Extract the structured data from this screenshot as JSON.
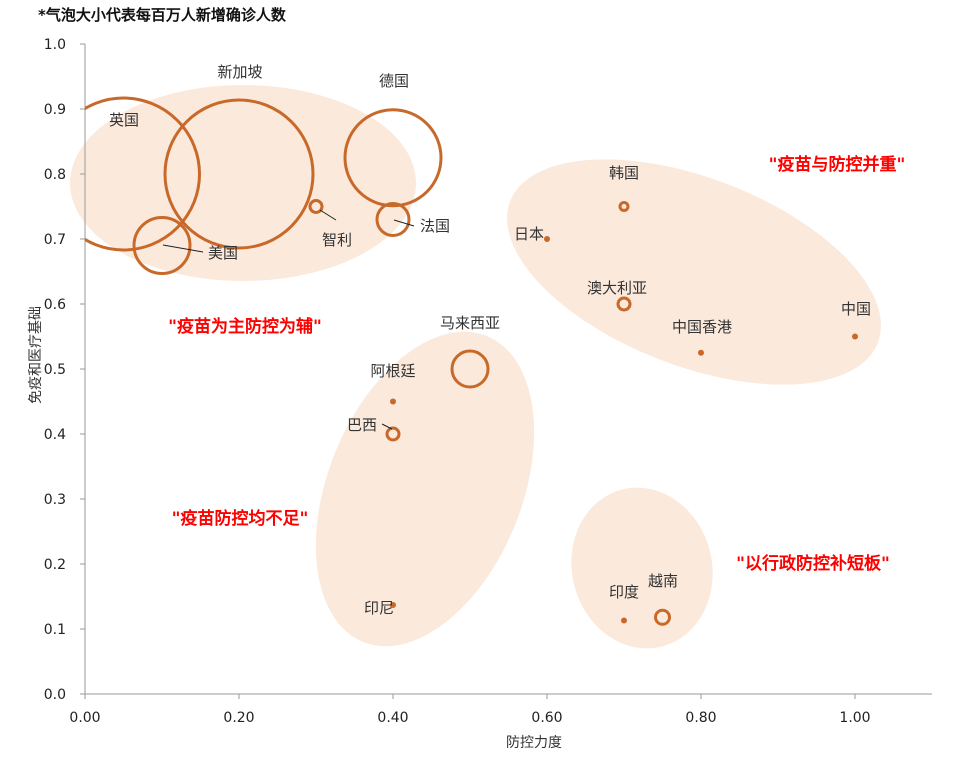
{
  "chart_data": {
    "type": "bubble",
    "note": "*气泡大小代表每百万人新增确诊人数",
    "xlabel": "防控力度",
    "ylabel": "免疫和医疗基础",
    "xlim": [
      0,
      1.1
    ],
    "ylim": [
      0,
      1.0
    ],
    "x_ticks": [
      "0.00",
      "0.20",
      "0.40",
      "0.60",
      "0.80",
      "1.00"
    ],
    "y_ticks": [
      "0.0",
      "0.1",
      "0.2",
      "0.3",
      "0.4",
      "0.5",
      "0.6",
      "0.7",
      "0.8",
      "0.9",
      "1.0"
    ],
    "grid": false,
    "colors": {
      "bubble": "#c8692a",
      "ellipse": "#fbe9dc",
      "group_label": "#ff0000"
    },
    "points": [
      {
        "name": "英国",
        "x": 0.05,
        "y": 0.8,
        "size": 76
      },
      {
        "name": "新加坡",
        "x": 0.2,
        "y": 0.8,
        "size": 74
      },
      {
        "name": "德国",
        "x": 0.4,
        "y": 0.825,
        "size": 48
      },
      {
        "name": "美国",
        "x": 0.1,
        "y": 0.69,
        "size": 28
      },
      {
        "name": "智利",
        "x": 0.3,
        "y": 0.75,
        "size": 6
      },
      {
        "name": "法国",
        "x": 0.4,
        "y": 0.73,
        "size": 16
      },
      {
        "name": "韩国",
        "x": 0.7,
        "y": 0.75,
        "size": 4
      },
      {
        "name": "日本",
        "x": 0.6,
        "y": 0.7,
        "size": 1
      },
      {
        "name": "澳大利亚",
        "x": 0.7,
        "y": 0.6,
        "size": 6
      },
      {
        "name": "中国香港",
        "x": 0.8,
        "y": 0.525,
        "size": 1
      },
      {
        "name": "中国",
        "x": 1.0,
        "y": 0.55,
        "size": 1
      },
      {
        "name": "马来西亚",
        "x": 0.5,
        "y": 0.5,
        "size": 18
      },
      {
        "name": "阿根廷",
        "x": 0.4,
        "y": 0.45,
        "size": 1
      },
      {
        "name": "巴西",
        "x": 0.4,
        "y": 0.4,
        "size": 6
      },
      {
        "name": "印尼",
        "x": 0.4,
        "y": 0.137,
        "size": 1
      },
      {
        "name": "印度",
        "x": 0.7,
        "y": 0.113,
        "size": 1
      },
      {
        "name": "越南",
        "x": 0.75,
        "y": 0.118,
        "size": 7
      }
    ],
    "groups": [
      {
        "label": "\"疫苗为主防控为辅\""
      },
      {
        "label": "\"疫苗与防控并重\""
      },
      {
        "label": "\"疫苗防控均不足\""
      },
      {
        "label": "\"以行政防控补短板\""
      }
    ]
  }
}
